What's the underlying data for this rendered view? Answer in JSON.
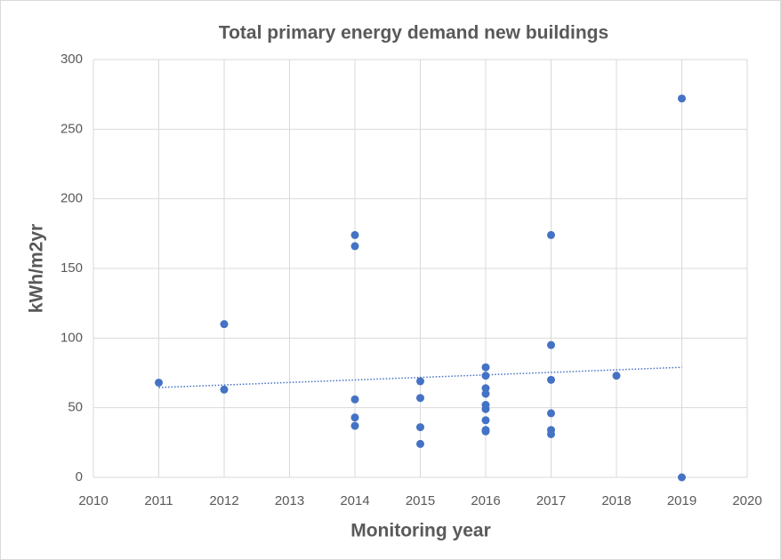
{
  "chart_data": {
    "type": "scatter",
    "title": "Total primary energy demand new buildings",
    "x_label": "Monitoring year",
    "y_label": "kWh/m2yr",
    "x": [
      2011,
      2012,
      2012,
      2014,
      2014,
      2014,
      2014,
      2014,
      2015,
      2015,
      2015,
      2015,
      2016,
      2016,
      2016,
      2016,
      2016,
      2016,
      2016,
      2016,
      2016,
      2017,
      2017,
      2017,
      2017,
      2017,
      2017,
      2018,
      2019,
      2019
    ],
    "values": [
      68,
      110,
      63,
      174,
      166,
      56,
      43,
      37,
      69,
      57,
      36,
      24,
      79,
      73,
      64,
      60,
      52,
      49,
      41,
      34,
      33,
      174,
      95,
      70,
      46,
      34,
      31,
      73,
      272,
      0
    ],
    "color": "#4472c4",
    "trendline": {
      "x": [
        2011,
        2019
      ],
      "values": [
        64.5,
        79
      ]
    },
    "xlim": [
      2010,
      2020
    ],
    "xticks": [
      2010,
      2011,
      2012,
      2013,
      2014,
      2015,
      2016,
      2017,
      2018,
      2019,
      2020
    ],
    "ylim": [
      0,
      300
    ],
    "yticks": [
      0,
      50,
      100,
      150,
      200,
      250,
      300
    ],
    "grid": true
  }
}
